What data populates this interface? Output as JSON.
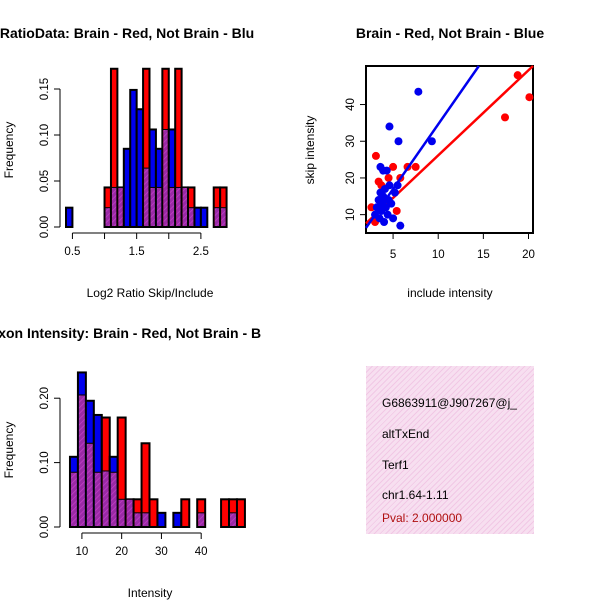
{
  "colors": {
    "red": "#ff0000",
    "blue": "#0000ee",
    "purple": "#9a2aa6",
    "frame": "#000000"
  },
  "info": {
    "id": "G6863911@J907267@j_",
    "event": "altTxEnd",
    "gene": "Terf1",
    "location": "chr1.64-1.11",
    "pval": "Pval: 2.000000"
  },
  "chart_data": [
    {
      "type": "bar",
      "title": "RatioData: Brain - Red, Not Brain - Blu",
      "xlabel": "Log2 Ratio Skip/Include",
      "ylabel": "Frequency",
      "xlim": [
        0.4,
        3.0
      ],
      "ylim": [
        0,
        0.175
      ],
      "xticks": [
        0.5,
        1.5,
        2.5
      ],
      "xtick_labels": [
        "0.5",
        "1.5",
        "2.5"
      ],
      "xticks_minor": [
        1.0,
        2.0
      ],
      "yticks": [
        0.0,
        0.05,
        0.1,
        0.15
      ],
      "ytick_labels": [
        "0.00",
        "0.05",
        "0.10",
        "0.15"
      ],
      "bin_start": 0.4,
      "bin_width": 0.1,
      "series": [
        {
          "name": "Brain",
          "color": "red",
          "values": [
            0,
            0,
            0,
            0,
            0,
            0,
            0.043,
            0.172,
            0.043,
            0,
            0,
            0,
            0.172,
            0.043,
            0.043,
            0.172,
            0.043,
            0.172,
            0.043,
            0.043,
            0,
            0,
            0,
            0.043,
            0.043,
            0
          ]
        },
        {
          "name": "Not Brain",
          "color": "blue",
          "values": [
            0.021,
            0,
            0,
            0,
            0,
            0,
            0.021,
            0.043,
            0.043,
            0.085,
            0.149,
            0.128,
            0.064,
            0.106,
            0.085,
            0.106,
            0.106,
            0.043,
            0.043,
            0.021,
            0.021,
            0.021,
            0,
            0.021,
            0.021,
            0
          ]
        }
      ]
    },
    {
      "type": "scatter",
      "title": "Brain - Red, Not Brain - Blue",
      "xlabel": "include intensity",
      "ylabel": "skip intensity",
      "xlim": [
        2,
        20.5
      ],
      "ylim": [
        5,
        50.5
      ],
      "xticks": [
        5,
        10,
        15,
        20
      ],
      "xtick_labels": [
        "5",
        "10",
        "15",
        "20"
      ],
      "yticks": [
        10,
        20,
        30,
        40
      ],
      "ytick_labels": [
        "10",
        "20",
        "30",
        "40"
      ],
      "series": [
        {
          "name": "Brain",
          "color": "red",
          "points": [
            [
              2.6,
              12
            ],
            [
              3.1,
              26
            ],
            [
              3.4,
              19
            ],
            [
              3.7,
              18
            ],
            [
              4.1,
              14
            ],
            [
              4.5,
              20
            ],
            [
              5.0,
              23
            ],
            [
              5.4,
              11
            ],
            [
              3.0,
              8
            ],
            [
              5.8,
              20
            ],
            [
              6.6,
              23
            ],
            [
              7.5,
              23
            ],
            [
              17.4,
              36.5
            ],
            [
              18.8,
              48
            ],
            [
              20.1,
              42
            ]
          ],
          "fit": [
            [
              2,
              7.6
            ],
            [
              20.5,
              50.5
            ]
          ]
        },
        {
          "name": "Not Brain",
          "color": "blue",
          "points": [
            [
              3.0,
              10
            ],
            [
              3.2,
              12
            ],
            [
              3.4,
              14
            ],
            [
              3.5,
              9
            ],
            [
              3.6,
              16
            ],
            [
              3.7,
              11
            ],
            [
              3.8,
              13
            ],
            [
              3.9,
              15
            ],
            [
              4.0,
              8
            ],
            [
              4.1,
              17
            ],
            [
              4.2,
              12
            ],
            [
              4.3,
              22
            ],
            [
              4.4,
              10
            ],
            [
              4.5,
              14
            ],
            [
              4.6,
              18
            ],
            [
              4.8,
              13
            ],
            [
              5.0,
              9
            ],
            [
              5.2,
              16
            ],
            [
              5.5,
              18
            ],
            [
              3.6,
              23
            ],
            [
              3.9,
              22
            ],
            [
              4.6,
              34
            ],
            [
              5.6,
              30
            ],
            [
              5.8,
              7
            ],
            [
              9.3,
              30
            ],
            [
              7.8,
              43.5
            ]
          ],
          "fit": [
            [
              2,
              6.4
            ],
            [
              14.5,
              50.5
            ]
          ]
        }
      ]
    },
    {
      "type": "bar",
      "title": "Exon Intensity: Brain - Red, Not Brain - B",
      "xlabel": "Intensity",
      "ylabel": "Frequency",
      "xlim": [
        6,
        48
      ],
      "ylim": [
        0,
        0.25
      ],
      "xticks": [
        10,
        20,
        30,
        40
      ],
      "xtick_labels": [
        "10",
        "20",
        "30",
        "40"
      ],
      "yticks": [
        0.0,
        0.1,
        0.2
      ],
      "ytick_labels": [
        "0.00",
        "0.10",
        "0.20"
      ],
      "bin_start": 7,
      "bin_width": 2,
      "series": [
        {
          "name": "Brain",
          "color": "red",
          "values": [
            0.085,
            0.205,
            0.13,
            0.085,
            0.17,
            0.085,
            0.17,
            0.043,
            0.043,
            0.13,
            0.043,
            0,
            0,
            0,
            0.043,
            0,
            0.043,
            0,
            0,
            0.043,
            0.043,
            0.043
          ]
        },
        {
          "name": "Not Brain",
          "color": "blue",
          "values": [
            0.109,
            0.24,
            0.196,
            0.174,
            0.087,
            0.109,
            0.043,
            0.043,
            0.022,
            0.022,
            0,
            0.022,
            0,
            0.022,
            0,
            0,
            0.022,
            0,
            0,
            0,
            0.022,
            0
          ]
        }
      ]
    }
  ]
}
